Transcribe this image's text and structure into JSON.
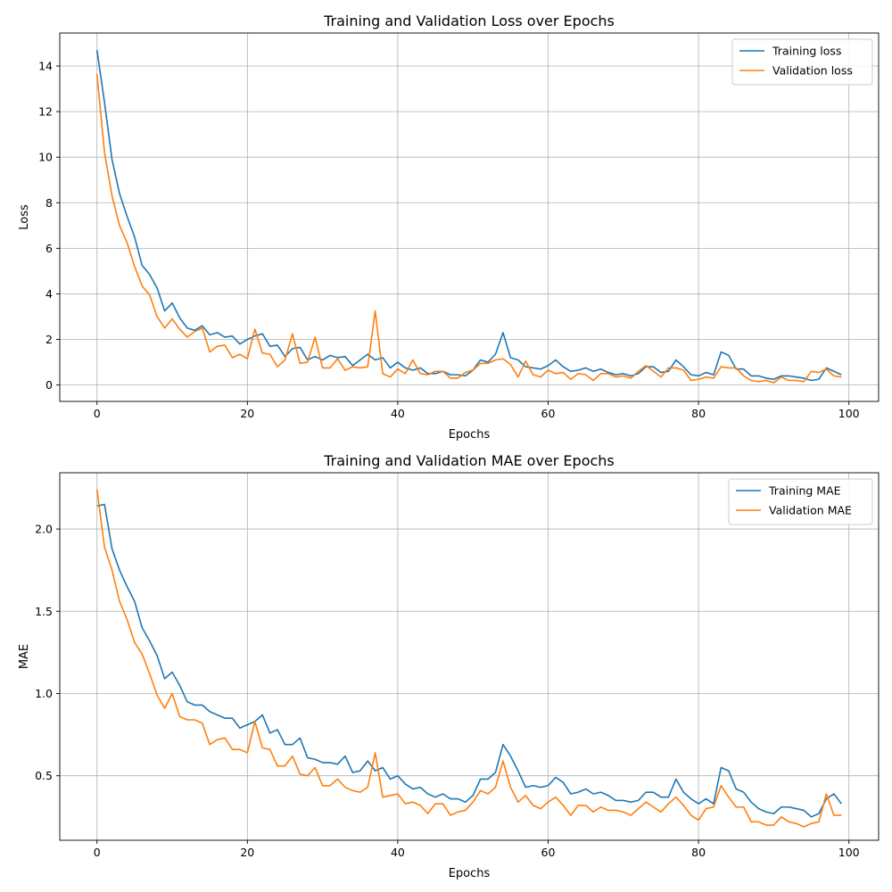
{
  "chart_data": [
    {
      "type": "line",
      "title": "Training and Validation Loss over Epochs",
      "xlabel": "Epochs",
      "ylabel": "Loss",
      "xlim": [
        -4.95,
        103.95
      ],
      "ylim": [
        -0.72,
        15.45
      ],
      "xticks": [
        0,
        20,
        40,
        60,
        80,
        100
      ],
      "xtick_labels": [
        "0",
        "20",
        "40",
        "60",
        "80",
        "100"
      ],
      "yticks": [
        0,
        2,
        4,
        6,
        8,
        10,
        12,
        14
      ],
      "ytick_labels": [
        "0",
        "2",
        "4",
        "6",
        "8",
        "10",
        "12",
        "14"
      ],
      "grid": true,
      "legend_position": "top-right",
      "series": [
        {
          "name": "Training loss",
          "color": "#1f77b4",
          "values": [
            14.7,
            12.4,
            9.9,
            8.4,
            7.4,
            6.5,
            5.25,
            4.85,
            4.25,
            3.25,
            3.6,
            2.95,
            2.5,
            2.4,
            2.6,
            2.2,
            2.3,
            2.1,
            2.15,
            1.8,
            2.0,
            2.15,
            2.25,
            1.7,
            1.75,
            1.25,
            1.6,
            1.65,
            1.1,
            1.25,
            1.1,
            1.3,
            1.2,
            1.25,
            0.85,
            1.1,
            1.35,
            1.1,
            1.2,
            0.75,
            1.0,
            0.75,
            0.65,
            0.75,
            0.5,
            0.5,
            0.6,
            0.45,
            0.45,
            0.4,
            0.65,
            1.1,
            1.0,
            1.35,
            2.3,
            1.2,
            1.1,
            0.8,
            0.75,
            0.7,
            0.85,
            1.1,
            0.8,
            0.6,
            0.65,
            0.75,
            0.6,
            0.7,
            0.55,
            0.45,
            0.5,
            0.4,
            0.5,
            0.8,
            0.8,
            0.55,
            0.6,
            1.1,
            0.8,
            0.45,
            0.4,
            0.55,
            0.45,
            1.45,
            1.3,
            0.7,
            0.7,
            0.4,
            0.4,
            0.3,
            0.25,
            0.4,
            0.4,
            0.35,
            0.3,
            0.2,
            0.25,
            0.75,
            0.6,
            0.45
          ]
        },
        {
          "name": "Validation loss",
          "color": "#ff7f0e",
          "values": [
            13.65,
            10.2,
            8.3,
            7.0,
            6.25,
            5.2,
            4.35,
            3.95,
            3.0,
            2.5,
            2.9,
            2.45,
            2.1,
            2.35,
            2.5,
            1.45,
            1.7,
            1.75,
            1.2,
            1.35,
            1.15,
            2.45,
            1.4,
            1.35,
            0.8,
            1.1,
            2.25,
            0.95,
            1.0,
            2.1,
            0.75,
            0.75,
            1.15,
            0.65,
            0.8,
            0.75,
            0.8,
            3.25,
            0.5,
            0.35,
            0.7,
            0.5,
            1.1,
            0.5,
            0.45,
            0.6,
            0.6,
            0.3,
            0.3,
            0.55,
            0.65,
            0.95,
            0.95,
            1.1,
            1.15,
            0.9,
            0.35,
            1.05,
            0.45,
            0.35,
            0.65,
            0.5,
            0.55,
            0.25,
            0.5,
            0.45,
            0.2,
            0.5,
            0.5,
            0.35,
            0.4,
            0.3,
            0.6,
            0.85,
            0.6,
            0.35,
            0.75,
            0.75,
            0.65,
            0.2,
            0.25,
            0.35,
            0.3,
            0.8,
            0.75,
            0.75,
            0.4,
            0.2,
            0.15,
            0.2,
            0.1,
            0.35,
            0.2,
            0.2,
            0.15,
            0.6,
            0.55,
            0.7,
            0.4,
            0.35
          ]
        }
      ]
    },
    {
      "type": "line",
      "title": "Training and Validation MAE over Epochs",
      "xlabel": "Epochs",
      "ylabel": "MAE",
      "xlim": [
        -4.95,
        103.95
      ],
      "ylim": [
        0.108,
        2.342
      ],
      "xticks": [
        0,
        20,
        40,
        60,
        80,
        100
      ],
      "xtick_labels": [
        "0",
        "20",
        "40",
        "60",
        "80",
        "100"
      ],
      "yticks": [
        0.5,
        1.0,
        1.5,
        2.0
      ],
      "ytick_labels": [
        "0.5",
        "1.0",
        "1.5",
        "2.0"
      ],
      "grid": true,
      "legend_position": "top-right",
      "series": [
        {
          "name": "Training MAE",
          "color": "#1f77b4",
          "values": [
            2.14,
            2.15,
            1.88,
            1.75,
            1.65,
            1.56,
            1.4,
            1.32,
            1.23,
            1.09,
            1.13,
            1.05,
            0.95,
            0.93,
            0.93,
            0.89,
            0.87,
            0.85,
            0.85,
            0.79,
            0.81,
            0.83,
            0.87,
            0.76,
            0.78,
            0.69,
            0.69,
            0.73,
            0.61,
            0.6,
            0.58,
            0.58,
            0.57,
            0.62,
            0.52,
            0.53,
            0.59,
            0.53,
            0.55,
            0.48,
            0.5,
            0.45,
            0.42,
            0.43,
            0.39,
            0.37,
            0.39,
            0.36,
            0.36,
            0.34,
            0.38,
            0.48,
            0.48,
            0.52,
            0.69,
            0.62,
            0.53,
            0.43,
            0.44,
            0.43,
            0.44,
            0.49,
            0.46,
            0.39,
            0.4,
            0.42,
            0.39,
            0.4,
            0.38,
            0.35,
            0.35,
            0.34,
            0.35,
            0.4,
            0.4,
            0.37,
            0.37,
            0.48,
            0.4,
            0.36,
            0.33,
            0.36,
            0.33,
            0.55,
            0.53,
            0.42,
            0.4,
            0.34,
            0.3,
            0.28,
            0.27,
            0.31,
            0.31,
            0.3,
            0.29,
            0.25,
            0.27,
            0.36,
            0.39,
            0.33
          ]
        },
        {
          "name": "Validation MAE",
          "color": "#ff7f0e",
          "values": [
            2.24,
            1.89,
            1.75,
            1.56,
            1.45,
            1.31,
            1.24,
            1.12,
            0.99,
            0.91,
            1.0,
            0.86,
            0.84,
            0.84,
            0.82,
            0.69,
            0.72,
            0.73,
            0.66,
            0.66,
            0.64,
            0.83,
            0.67,
            0.66,
            0.56,
            0.56,
            0.62,
            0.51,
            0.5,
            0.55,
            0.44,
            0.44,
            0.48,
            0.43,
            0.41,
            0.4,
            0.43,
            0.64,
            0.37,
            0.38,
            0.39,
            0.33,
            0.34,
            0.32,
            0.27,
            0.33,
            0.33,
            0.26,
            0.28,
            0.29,
            0.34,
            0.41,
            0.39,
            0.43,
            0.59,
            0.43,
            0.34,
            0.38,
            0.32,
            0.3,
            0.34,
            0.37,
            0.32,
            0.26,
            0.32,
            0.32,
            0.28,
            0.31,
            0.29,
            0.29,
            0.28,
            0.26,
            0.3,
            0.34,
            0.31,
            0.28,
            0.33,
            0.37,
            0.32,
            0.26,
            0.23,
            0.3,
            0.31,
            0.44,
            0.37,
            0.31,
            0.31,
            0.22,
            0.22,
            0.2,
            0.2,
            0.25,
            0.22,
            0.21,
            0.19,
            0.21,
            0.22,
            0.39,
            0.26,
            0.26
          ]
        }
      ]
    }
  ]
}
